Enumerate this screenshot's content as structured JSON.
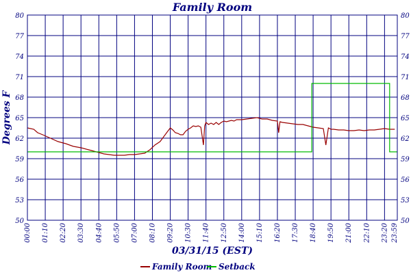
{
  "chart_data": {
    "type": "line",
    "title": "Family Room",
    "xlabel": "03/31/15 (EST)",
    "ylabel": "Degrees F",
    "ylim": [
      50,
      80
    ],
    "y_ticks": [
      50,
      53,
      56,
      59,
      62,
      65,
      68,
      71,
      74,
      77,
      80
    ],
    "xlim": [
      0,
      1450
    ],
    "x_tick_labels": [
      "00:00",
      "01:10",
      "02:20",
      "03:30",
      "04:40",
      "05:50",
      "07:00",
      "08:10",
      "09:20",
      "10:30",
      "11:40",
      "12:50",
      "14:00",
      "15:10",
      "16:20",
      "17:30",
      "18:40",
      "19:50",
      "21:00",
      "22:10",
      "23:20",
      "23:59"
    ],
    "grid": true,
    "legend": "bottom",
    "series": [
      {
        "name": "Family Room",
        "color": "#990000",
        "x": [
          0,
          25,
          40,
          60,
          90,
          120,
          150,
          180,
          210,
          240,
          270,
          300,
          320,
          340,
          360,
          380,
          400,
          420,
          440,
          460,
          480,
          500,
          520,
          530,
          540,
          550,
          560,
          570,
          580,
          590,
          600,
          610,
          620,
          630,
          640,
          650,
          660,
          670,
          680,
          690,
          695,
          700,
          710,
          720,
          730,
          740,
          750,
          760,
          770,
          780,
          790,
          800,
          810,
          820,
          840,
          860,
          880,
          900,
          920,
          940,
          960,
          980,
          985,
          990,
          1000,
          1020,
          1040,
          1060,
          1080,
          1100,
          1120,
          1140,
          1160,
          1170,
          1180,
          1190,
          1200,
          1220,
          1240,
          1260,
          1280,
          1300,
          1320,
          1340,
          1360,
          1380,
          1400,
          1420,
          1440
        ],
        "y": [
          63.5,
          63.3,
          62.8,
          62.5,
          62.0,
          61.5,
          61.2,
          60.8,
          60.6,
          60.3,
          60.0,
          59.7,
          59.6,
          59.5,
          59.5,
          59.5,
          59.6,
          59.6,
          59.7,
          59.8,
          60.3,
          61.0,
          61.5,
          62.0,
          62.5,
          63.0,
          63.5,
          63.2,
          62.8,
          62.7,
          62.5,
          62.5,
          63.0,
          63.3,
          63.5,
          63.8,
          63.7,
          63.8,
          63.6,
          61.0,
          63.8,
          64.3,
          64.0,
          64.2,
          64.0,
          64.3,
          64.0,
          64.3,
          64.5,
          64.4,
          64.5,
          64.6,
          64.5,
          64.7,
          64.7,
          64.8,
          64.9,
          65.0,
          64.8,
          64.8,
          64.6,
          64.5,
          62.8,
          64.4,
          64.3,
          64.2,
          64.1,
          64.0,
          64.0,
          63.8,
          63.6,
          63.5,
          63.4,
          61.0,
          63.5,
          63.3,
          63.3,
          63.2,
          63.2,
          63.1,
          63.1,
          63.2,
          63.1,
          63.2,
          63.2,
          63.3,
          63.4,
          63.3,
          63.3
        ]
      },
      {
        "name": "Setback",
        "color": "#00bb00",
        "x": [
          0,
          1115,
          1115,
          1420,
          1420,
          1450
        ],
        "y": [
          60,
          60,
          70,
          70,
          60,
          60
        ]
      }
    ]
  }
}
